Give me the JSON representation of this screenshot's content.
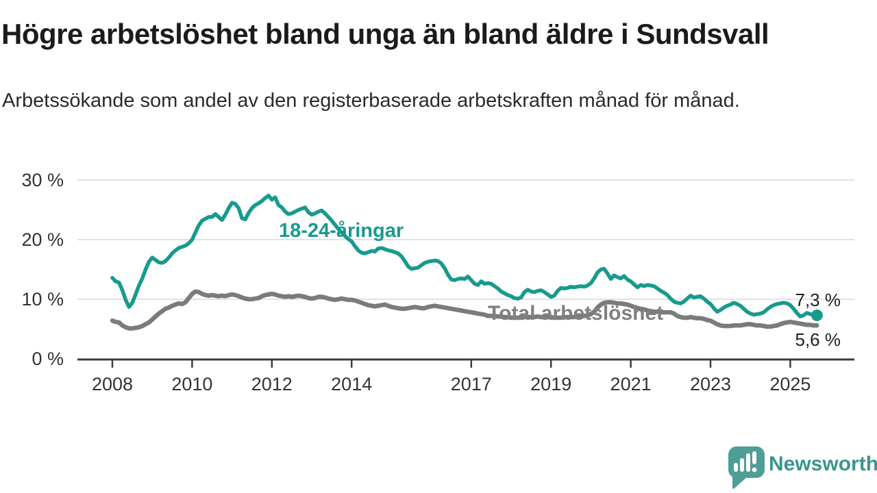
{
  "title": "Högre arbetslöshet bland unga än bland äldre i Sundsvall",
  "subtitle": "Arbetssökande som andel av den registerbaserade arbetskraften månad för månad.",
  "y_axis": {
    "tick_values": [
      30,
      20,
      10,
      0
    ],
    "tick_labels": [
      "30 %",
      "20 %",
      "10 %",
      "0 %"
    ]
  },
  "x_axis": {
    "tick_years": [
      2008,
      2010,
      2012,
      2014,
      2017,
      2019,
      2021,
      2023,
      2025
    ],
    "tick_labels": [
      "2008",
      "2010",
      "2012",
      "2014",
      "2017",
      "2019",
      "2021",
      "2023",
      "2025"
    ]
  },
  "series_labels": {
    "youth": "18-24-åringar",
    "total": "Total arbetslöshet"
  },
  "end_labels": {
    "youth": "7,3 %",
    "total": "5,6 %"
  },
  "logo": {
    "name": "Newsworthy",
    "wordmark": "Newsworthy"
  },
  "colors": {
    "youth_line": "#189a8e",
    "total_line": "#7b7b7b",
    "total_label": "#7f7f7f",
    "gridline": "#d9d9d9",
    "axis": "#3d3d3d",
    "logo_bubble": "#4f9d97",
    "logo_word": "#38968f"
  },
  "chart_data": {
    "type": "line",
    "title": "Högre arbetslöshet bland unga än bland äldre i Sundsvall",
    "subtitle": "Arbetssökande som andel av den registerbaserade arbetskraften månad för månad.",
    "xlabel": "",
    "ylabel": "",
    "x_range": [
      2008.0,
      2025.67
    ],
    "ylim": [
      0,
      30
    ],
    "grid": "horizontal",
    "legend_position": "inline-labels",
    "x_ticks": [
      2008,
      2010,
      2012,
      2014,
      2017,
      2019,
      2021,
      2023,
      2025
    ],
    "y_ticks_percent": [
      0,
      10,
      20,
      30
    ],
    "end_dot": {
      "year": 2025.67,
      "value": 7.3,
      "series": "18-24-åringar"
    },
    "end_values": {
      "18-24-åringar": "7,3 %",
      "Total arbetslöshet": "5,6 %"
    },
    "series": [
      {
        "name": "18-24-åringar",
        "color": "#189a8e",
        "start_year": 2008.0,
        "step_months": 1,
        "values": [
          13.6,
          13.0,
          12.8,
          11.5,
          9.9,
          8.7,
          9.4,
          10.8,
          12.3,
          13.5,
          15.0,
          16.3,
          17.0,
          16.6,
          16.2,
          16.1,
          16.4,
          17.0,
          17.7,
          18.2,
          18.6,
          18.8,
          19.0,
          19.4,
          20.0,
          21.2,
          22.4,
          23.2,
          23.5,
          23.8,
          23.8,
          24.3,
          23.8,
          23.3,
          24.2,
          25.3,
          26.2,
          26.0,
          25.3,
          23.6,
          23.4,
          24.5,
          25.3,
          25.8,
          26.1,
          26.5,
          27.0,
          27.4,
          26.7,
          27.1,
          25.8,
          25.4,
          24.7,
          24.3,
          24.4,
          24.7,
          25.0,
          25.2,
          25.4,
          24.6,
          24.2,
          24.4,
          24.7,
          24.9,
          24.4,
          23.8,
          23.2,
          22.5,
          21.8,
          21.2,
          20.6,
          20.1,
          19.7,
          18.9,
          18.2,
          17.8,
          17.7,
          17.9,
          18.1,
          18.0,
          18.5,
          18.6,
          18.4,
          18.2,
          18.1,
          17.9,
          17.7,
          17.2,
          16.4,
          15.5,
          15.1,
          15.2,
          15.3,
          15.7,
          16.1,
          16.3,
          16.4,
          16.5,
          16.4,
          16.0,
          15.2,
          14.1,
          13.3,
          13.2,
          13.4,
          13.5,
          13.4,
          13.8,
          13.2,
          12.6,
          12.4,
          13.0,
          12.6,
          12.7,
          12.6,
          12.2,
          11.8,
          11.3,
          11.0,
          10.7,
          10.5,
          10.2,
          10.1,
          10.3,
          11.2,
          11.6,
          11.3,
          11.2,
          11.4,
          11.5,
          11.2,
          10.8,
          10.4,
          10.6,
          11.4,
          11.9,
          11.8,
          11.9,
          12.1,
          12.0,
          12.1,
          12.2,
          12.1,
          12.3,
          12.7,
          13.5,
          14.5,
          15.0,
          15.1,
          14.3,
          13.4,
          14.0,
          13.7,
          13.5,
          13.9,
          13.3,
          13.0,
          12.5,
          12.0,
          12.4,
          12.2,
          12.4,
          12.3,
          12.2,
          11.8,
          11.4,
          11.1,
          10.7,
          10.1,
          9.6,
          9.4,
          9.3,
          9.6,
          10.1,
          10.6,
          10.3,
          10.4,
          10.5,
          10.1,
          9.6,
          9.2,
          8.5,
          7.9,
          8.2,
          8.6,
          8.9,
          9.1,
          9.4,
          9.2,
          8.9,
          8.4,
          7.9,
          7.6,
          7.4,
          7.5,
          7.6,
          7.8,
          8.3,
          8.7,
          9.0,
          9.2,
          9.3,
          9.4,
          9.3,
          9.0,
          8.4,
          7.7,
          7.1,
          7.3,
          7.7,
          7.5,
          7.4,
          7.3
        ]
      },
      {
        "name": "Total arbetslöshet",
        "color": "#7b7b7b",
        "start_year": 2008.0,
        "step_months": 1,
        "values": [
          6.4,
          6.2,
          6.1,
          5.6,
          5.3,
          5.1,
          5.1,
          5.2,
          5.3,
          5.5,
          5.8,
          6.1,
          6.6,
          7.1,
          7.6,
          8.0,
          8.4,
          8.6,
          8.9,
          9.1,
          9.3,
          9.2,
          9.5,
          10.2,
          10.9,
          11.3,
          11.2,
          10.9,
          10.7,
          10.6,
          10.7,
          10.6,
          10.5,
          10.6,
          10.5,
          10.7,
          10.8,
          10.7,
          10.5,
          10.3,
          10.1,
          10.0,
          10.0,
          10.1,
          10.2,
          10.5,
          10.7,
          10.8,
          10.9,
          10.8,
          10.6,
          10.5,
          10.4,
          10.5,
          10.4,
          10.5,
          10.6,
          10.5,
          10.4,
          10.2,
          10.1,
          10.2,
          10.4,
          10.4,
          10.3,
          10.1,
          10.0,
          9.9,
          10.0,
          10.1,
          10.0,
          9.9,
          9.9,
          9.8,
          9.6,
          9.4,
          9.2,
          9.0,
          8.9,
          8.8,
          8.9,
          9.0,
          9.1,
          8.9,
          8.7,
          8.6,
          8.5,
          8.4,
          8.4,
          8.5,
          8.6,
          8.7,
          8.6,
          8.5,
          8.5,
          8.7,
          8.8,
          8.9,
          8.8,
          8.7,
          8.6,
          8.5,
          8.4,
          8.3,
          8.2,
          8.1,
          8.0,
          7.9,
          7.8,
          7.7,
          7.6,
          7.5,
          7.4,
          7.2,
          7.2,
          7.2,
          7.1,
          7.1,
          7.0,
          7.0,
          6.9,
          6.9,
          6.9,
          6.9,
          7.0,
          7.0,
          7.0,
          7.0,
          7.1,
          7.0,
          7.0,
          7.0,
          7.0,
          6.9,
          6.9,
          6.9,
          7.0,
          7.0,
          7.0,
          7.0,
          7.1,
          7.1,
          7.2,
          7.3,
          7.5,
          7.9,
          8.6,
          9.1,
          9.4,
          9.5,
          9.5,
          9.4,
          9.3,
          9.3,
          9.2,
          9.1,
          8.9,
          8.7,
          8.5,
          8.4,
          8.3,
          8.1,
          8.0,
          7.9,
          7.9,
          7.8,
          7.8,
          7.8,
          7.8,
          7.6,
          7.2,
          7.0,
          6.9,
          6.9,
          7.0,
          6.9,
          6.8,
          6.8,
          6.7,
          6.5,
          6.4,
          6.1,
          5.8,
          5.6,
          5.5,
          5.5,
          5.5,
          5.6,
          5.6,
          5.6,
          5.7,
          5.8,
          5.8,
          5.7,
          5.6,
          5.6,
          5.5,
          5.4,
          5.4,
          5.5,
          5.6,
          5.8,
          6.0,
          6.1,
          6.2,
          6.1,
          6.0,
          5.9,
          5.8,
          5.7,
          5.7,
          5.6,
          5.6
        ]
      }
    ]
  }
}
